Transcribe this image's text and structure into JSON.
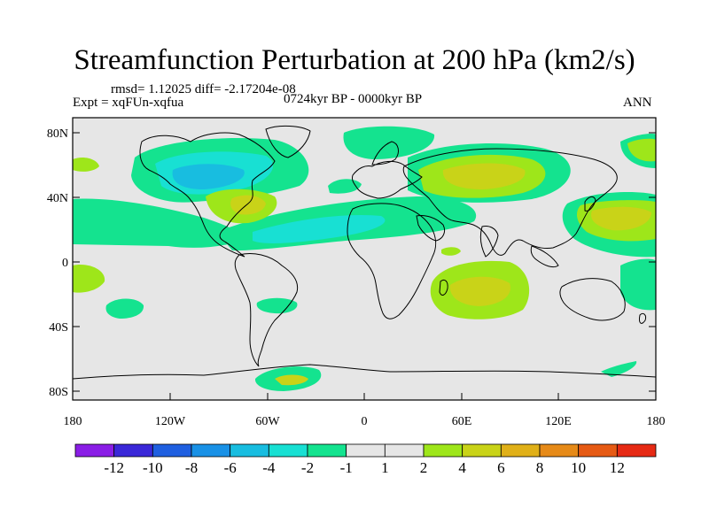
{
  "figure": {
    "title": "Streamfunction Perturbation at 200 hPa (km2/s)",
    "stats": "rmsd= 1.12025  diff= -2.17204e-08",
    "experiment": "Expt = xqFUn-xqfua",
    "period": "0724kyr BP - 0000kyr BP",
    "season": "ANN"
  },
  "axes": {
    "lat_labels": [
      "80N",
      "40N",
      "0",
      "40S",
      "80S"
    ],
    "lon_labels": [
      "180",
      "120W",
      "60W",
      "0",
      "60E",
      "120E",
      "180"
    ]
  },
  "colorbar": {
    "labels": [
      "-12",
      "-10",
      "-8",
      "-6",
      "-4",
      "-2",
      "-1",
      "1",
      "2",
      "4",
      "6",
      "8",
      "10",
      "12"
    ],
    "colors": [
      "#8a1ee6",
      "#3a28d8",
      "#1f5fe0",
      "#1991e6",
      "#18bde0",
      "#18e0d3",
      "#14e38f",
      "#e6e6e6",
      "#9ee61a",
      "#c9d318",
      "#e0b018",
      "#e68a18",
      "#e65a14",
      "#e62a14"
    ]
  },
  "palette": {
    "ocean": "#e6e6e6",
    "pos_light": "#9ee61a",
    "pos_mid": "#c9d318",
    "neg_light": "#14e38f",
    "neg_mid": "#18e0d3",
    "neg_strong": "#18bde0"
  }
}
